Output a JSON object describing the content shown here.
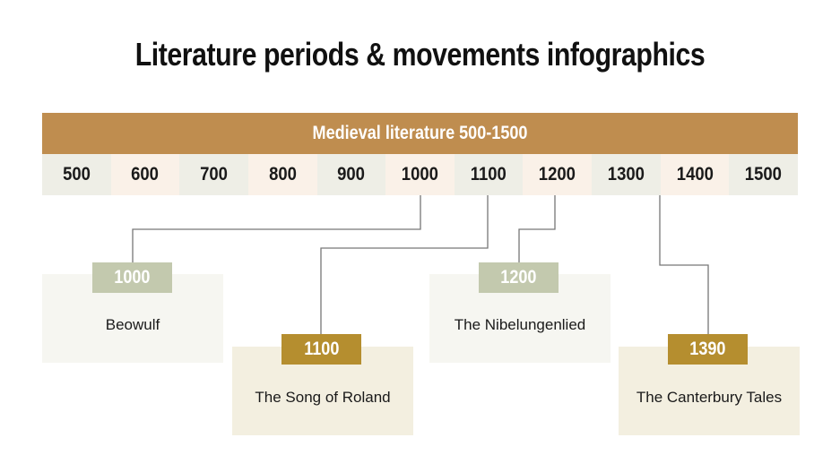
{
  "title": "Literature periods & movements infographics",
  "banner": "Medieval literature 500-1500",
  "years": [
    "500",
    "600",
    "700",
    "800",
    "900",
    "1000",
    "1100",
    "1200",
    "1300",
    "1400",
    "1500"
  ],
  "colors": {
    "banner": "#bf8d4f",
    "sage": "#c3c9ae",
    "gold": "#b58e2f",
    "cell_gray": "#eeeee6",
    "cell_peach": "#faf1e8"
  },
  "works": [
    {
      "year": "1000",
      "title": "Beowulf"
    },
    {
      "year": "1100",
      "title": "The Song of Roland"
    },
    {
      "year": "1200",
      "title": "The Nibelungenlied"
    },
    {
      "year": "1390",
      "title": "The Canterbury Tales"
    }
  ]
}
